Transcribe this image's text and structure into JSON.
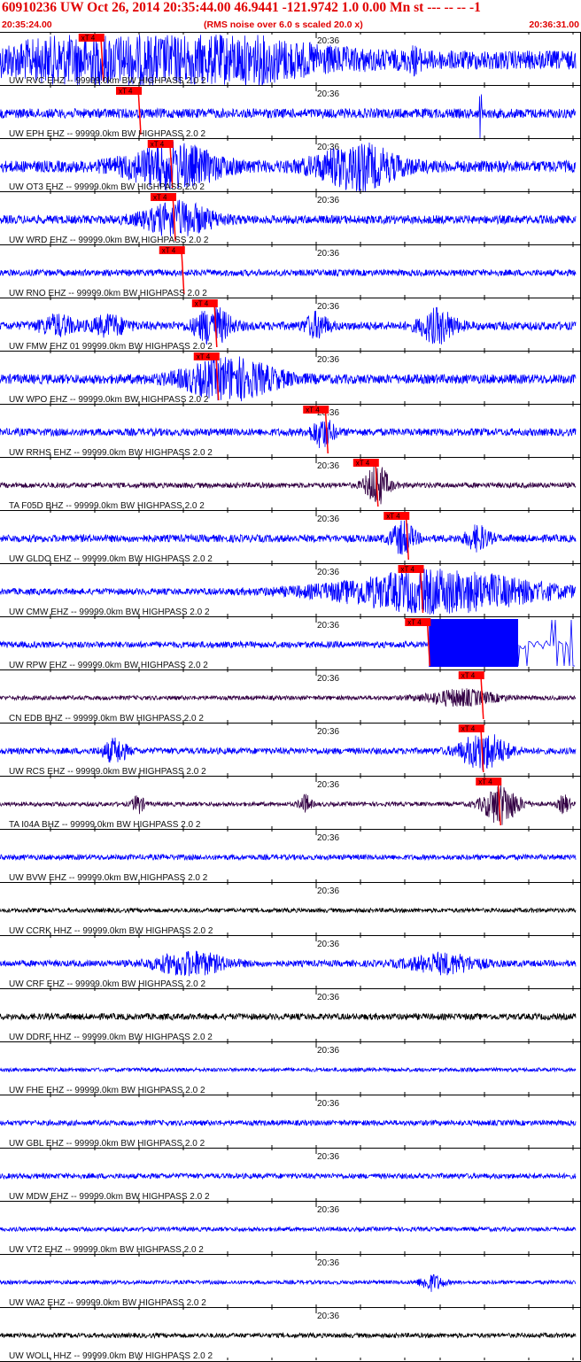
{
  "header": {
    "title": "60910236 UW Oct 26, 2014 20:35:44.00   46.9441 -121.9742  1.0 0.00 Mn st --- -- --   -1",
    "start_time": "20:35:24.00",
    "rms_note": "(RMS noise over 6.0 s scaled 20.0 x)",
    "end_time": "20:36:31.00"
  },
  "minute_tick_label": "20:36",
  "pick_label": "xT 4",
  "colors": {
    "header_text": "#e00000",
    "pick": "#ff0000",
    "grid": "#000000",
    "short_period": "#0000ff",
    "broadband": "#330044",
    "hh_channel": "#000000"
  },
  "traces": [
    {
      "label": "UW RVC EHZ -- 99999.0km BW  HIGHPASS  2.0  2",
      "color": "blue",
      "pick": 0.175,
      "amp": 0.9,
      "bursts": [
        [
          0.21,
          0.7,
          0.25
        ],
        [
          0.35,
          0.6,
          0.2
        ],
        [
          0.72,
          0.3,
          0.01
        ]
      ]
    },
    {
      "label": "UW EPH EHZ -- 99999.0km BW  HIGHPASS  2.0  2",
      "color": "blue",
      "pick": 0.24,
      "amp": 0.45,
      "spike": 0.835
    },
    {
      "label": "UW OT3 EHZ -- 99999.0km BW  HIGHPASS  2.0  2",
      "color": "blue",
      "pick": 0.295,
      "amp": 0.55,
      "bursts": [
        [
          0.3,
          0.9,
          0.08
        ],
        [
          0.62,
          0.9,
          0.07
        ]
      ]
    },
    {
      "label": "UW WRD EHZ -- 99999.0km BW  HIGHPASS  2.0  2",
      "color": "blue",
      "pick": 0.3,
      "amp": 0.4,
      "bursts": [
        [
          0.31,
          0.7,
          0.06
        ]
      ]
    },
    {
      "label": "UW RNO EHZ -- 99999.0km BW  HIGHPASS  2.0  2",
      "color": "blue",
      "pick": 0.315,
      "amp": 0.3
    },
    {
      "label": "UW FMW EHZ 01 99999.0km BW  HIGHPASS  2.0  2",
      "color": "blue",
      "pick": 0.372,
      "amp": 0.4,
      "bursts": [
        [
          0.1,
          0.4,
          0.03
        ],
        [
          0.19,
          0.4,
          0.03
        ],
        [
          0.37,
          0.8,
          0.03
        ],
        [
          0.55,
          0.5,
          0.02
        ],
        [
          0.76,
          0.7,
          0.03
        ]
      ]
    },
    {
      "label": "UW WPO EHZ -- 99999.0km BW  HIGHPASS  2.0  2",
      "color": "blue",
      "pick": 0.375,
      "amp": 0.45,
      "bursts": [
        [
          0.4,
          0.85,
          0.08
        ]
      ]
    },
    {
      "label": "UW RRHS EHZ -- 99999.0km BW  HIGHPASS  2.0  2",
      "color": "blue",
      "pick": 0.565,
      "amp": 0.35,
      "bursts": [
        [
          0.56,
          0.6,
          0.02
        ]
      ]
    },
    {
      "label": "TA F05D BHZ -- 99999.0km BW  HIGHPASS  2.0  2",
      "color": "broadband",
      "pick": 0.652,
      "amp": 0.25,
      "bursts": [
        [
          0.655,
          0.9,
          0.02
        ]
      ]
    },
    {
      "label": "UW GLDO EHZ -- 99999.0km BW  HIGHPASS  2.0  2",
      "color": "blue",
      "pick": 0.705,
      "amp": 0.35,
      "bursts": [
        [
          0.7,
          0.7,
          0.02
        ],
        [
          0.83,
          0.5,
          0.02
        ]
      ]
    },
    {
      "label": "UW CMW EHZ -- 99999.0km BW  HIGHPASS  2.0  2",
      "color": "blue",
      "pick": 0.73,
      "amp": 0.3,
      "bursts": [
        [
          0.76,
          0.9,
          0.18
        ]
      ]
    },
    {
      "label": "UW RPW EHZ -- 99999.0km BW  HIGHPASS  2.0  2",
      "color": "blue",
      "pick": 0.742,
      "amp": 0.3,
      "saturated": [
        0.745,
        0.9
      ]
    },
    {
      "label": "CN EDB BHZ -- 99999.0km BW  HIGHPASS  2.0  2",
      "color": "broadband",
      "pick": 0.835,
      "amp": 0.2,
      "bursts": [
        [
          0.8,
          0.35,
          0.06
        ]
      ]
    },
    {
      "label": "UW RCS EHZ -- 99999.0km BW  HIGHPASS  2.0  2",
      "color": "blue",
      "pick": 0.835,
      "amp": 0.3,
      "bursts": [
        [
          0.2,
          0.5,
          0.02
        ],
        [
          0.84,
          0.8,
          0.04
        ]
      ]
    },
    {
      "label": "TA I04A BHZ -- 99999.0km BW  HIGHPASS  2.0  2",
      "color": "broadband",
      "pick": 0.865,
      "amp": 0.2,
      "bursts": [
        [
          0.24,
          0.4,
          0.01
        ],
        [
          0.53,
          0.4,
          0.01
        ],
        [
          0.87,
          0.9,
          0.03
        ],
        [
          0.98,
          0.4,
          0.01
        ]
      ]
    },
    {
      "label": "UW BVW EHZ -- 99999.0km BW  HIGHPASS  2.0  2",
      "color": "blue",
      "amp": 0.25
    },
    {
      "label": "UW CCRK HHZ -- 99999.0km BW  HIGHPASS  2.0  2",
      "color": "hh",
      "amp": 0.2
    },
    {
      "label": "UW CRF EHZ -- 99999.0km BW  HIGHPASS  2.0  2",
      "color": "blue",
      "amp": 0.3,
      "bursts": [
        [
          0.33,
          0.5,
          0.06
        ],
        [
          0.77,
          0.4,
          0.06
        ]
      ]
    },
    {
      "label": "UW DDRF HHZ -- 99999.0km BW  HIGHPASS  2.0  2",
      "color": "hh",
      "amp": 0.3
    },
    {
      "label": "UW FHE EHZ -- 99999.0km BW  HIGHPASS  2.0  2",
      "color": "blue",
      "amp": 0.18
    },
    {
      "label": "UW GBL EHZ -- 99999.0km BW  HIGHPASS  2.0  2",
      "color": "blue",
      "amp": 0.25
    },
    {
      "label": "UW MDW EHZ -- 99999.0km BW  HIGHPASS  2.0  2",
      "color": "blue",
      "amp": 0.25
    },
    {
      "label": "UW VT2 EHZ -- 99999.0km BW  HIGHPASS  2.0  2",
      "color": "blue",
      "amp": 0.2
    },
    {
      "label": "UW WA2 EHZ -- 99999.0km BW  HIGHPASS  2.0  2",
      "color": "blue",
      "amp": 0.18,
      "bursts": [
        [
          0.75,
          0.35,
          0.02
        ]
      ]
    },
    {
      "label": "UW WOLL HHZ -- 99999.0km BW  HIGHPASS  2.0  2",
      "color": "hh",
      "amp": 0.22
    }
  ]
}
